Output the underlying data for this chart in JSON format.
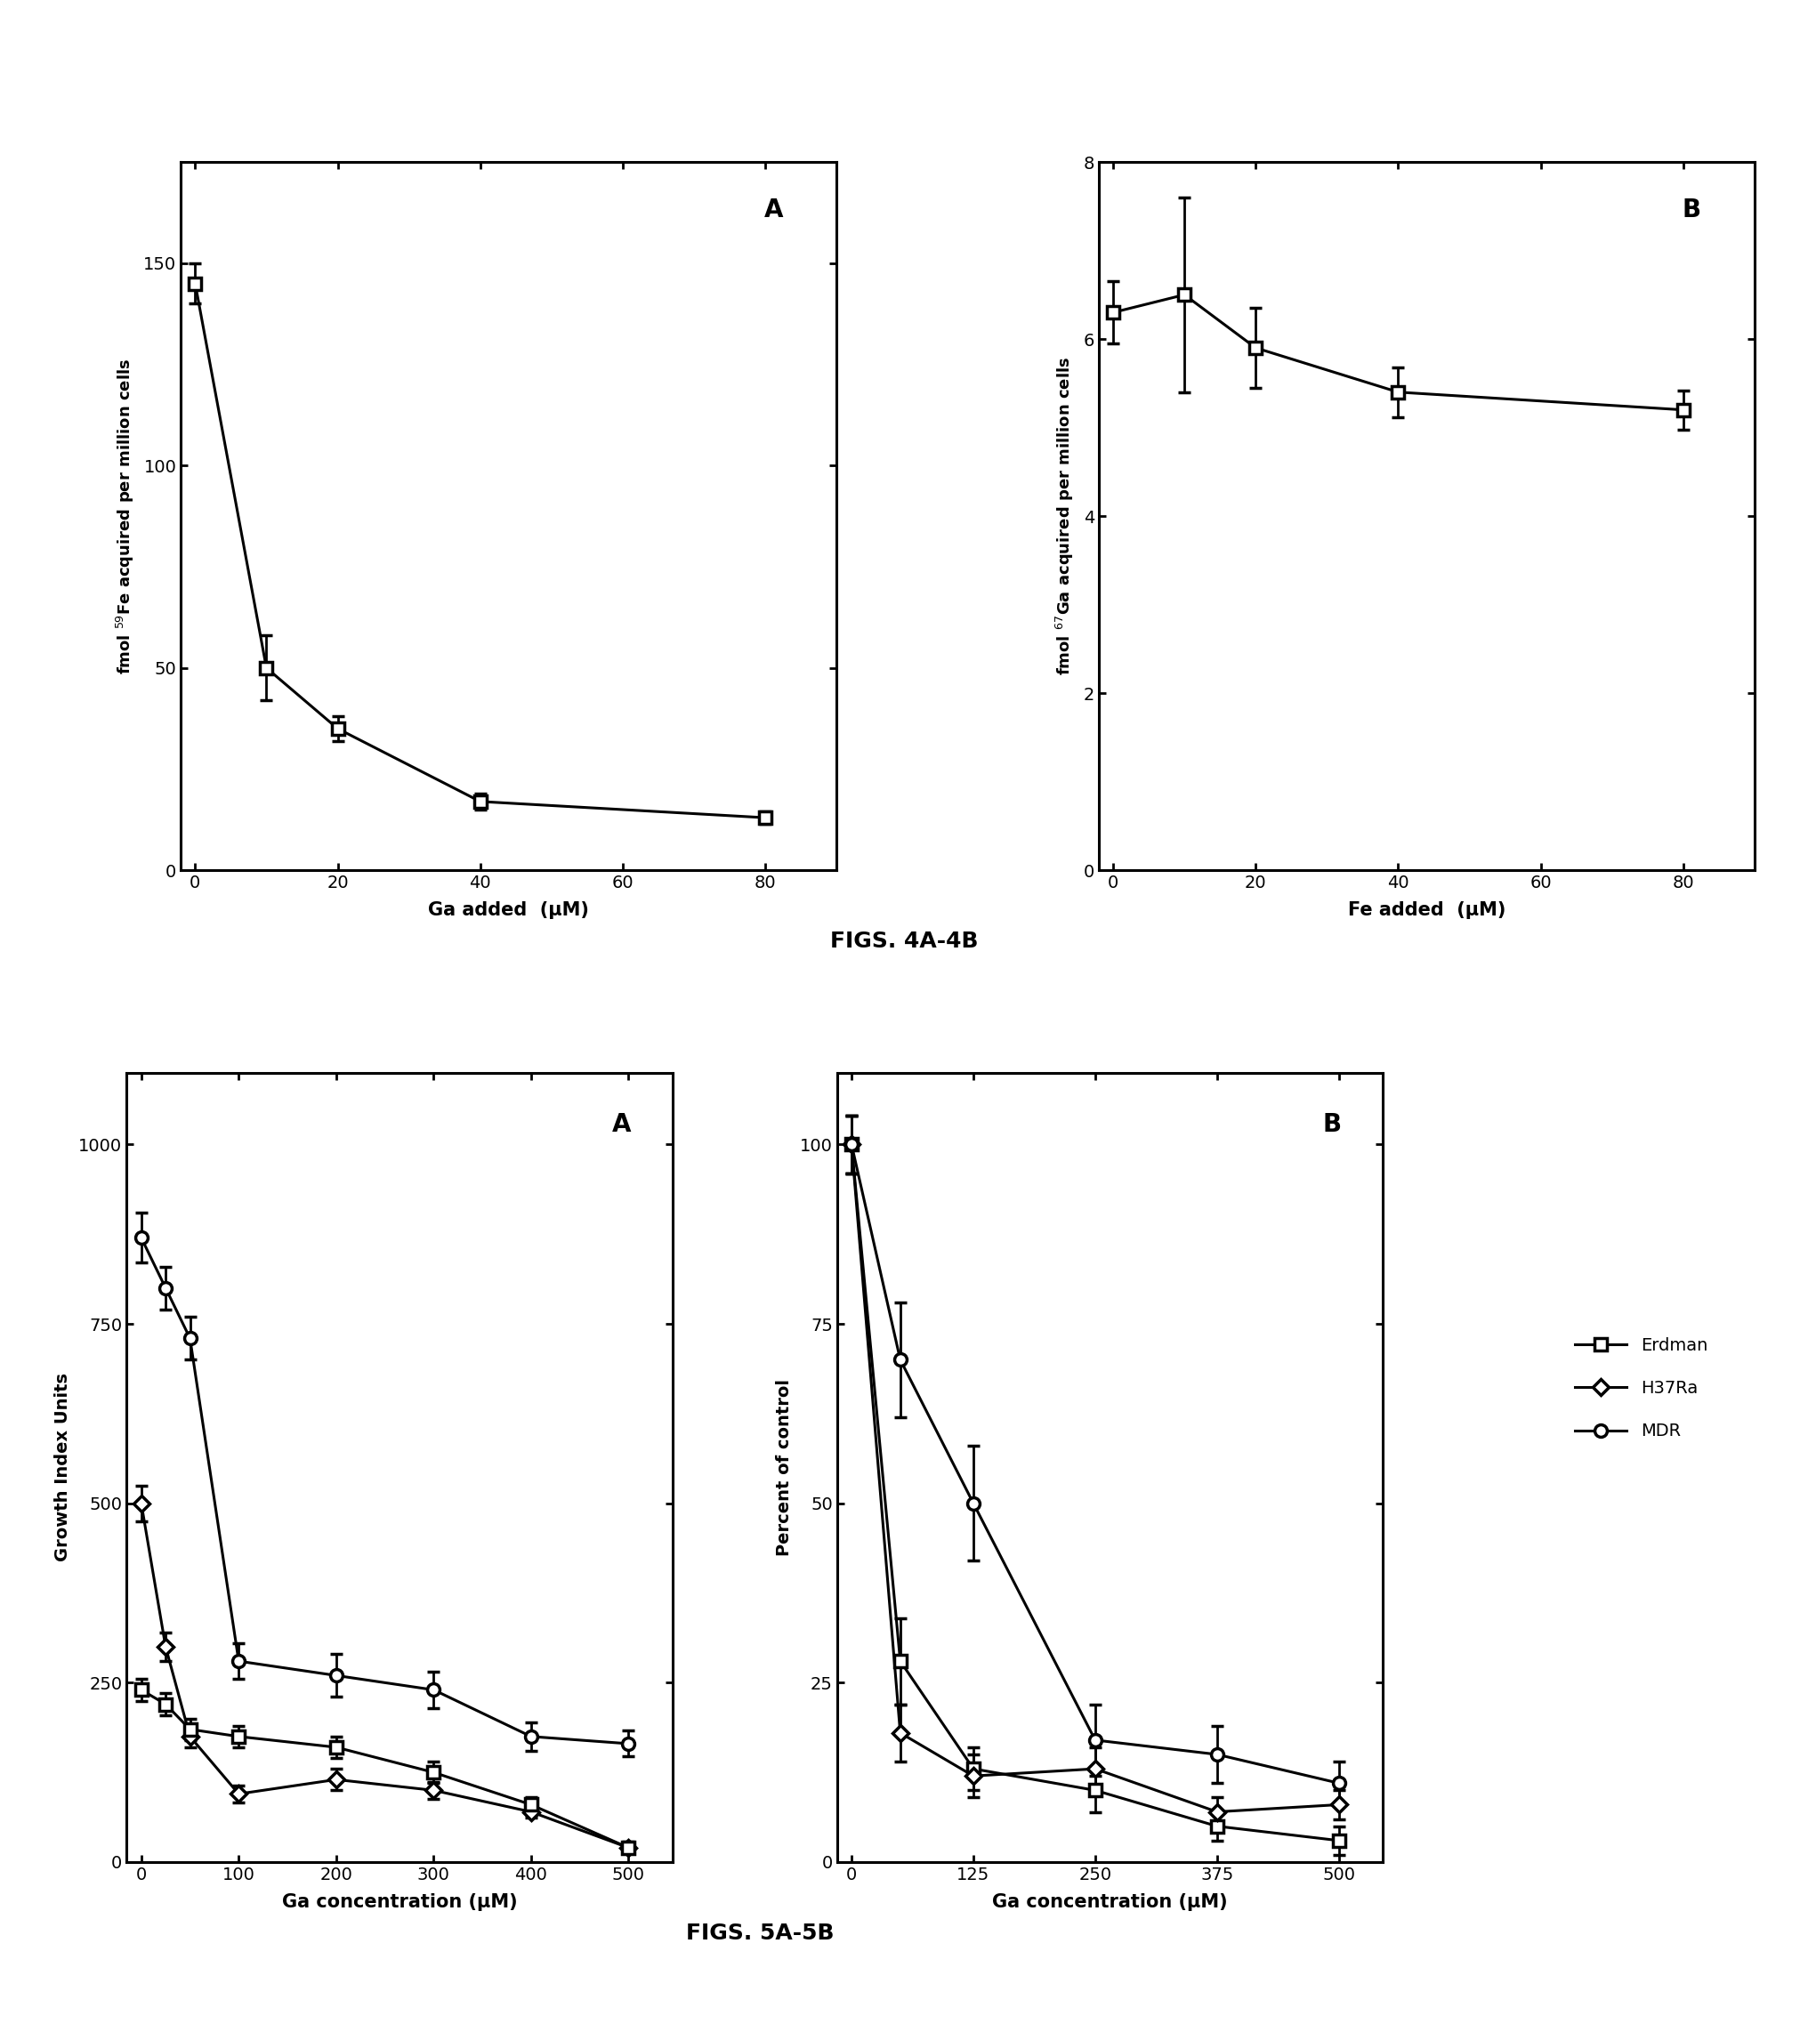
{
  "fig4A": {
    "x": [
      0,
      10,
      20,
      40,
      80
    ],
    "y": [
      145,
      50,
      35,
      17,
      13
    ],
    "yerr": [
      5,
      8,
      3,
      2,
      1.5
    ],
    "xlabel": "Ga added  (μM)",
    "ylabel": "fmol $^{59}$Fe acquired per million cells",
    "ylim": [
      0,
      175
    ],
    "xlim": [
      -2,
      90
    ],
    "yticks": [
      0,
      50,
      100,
      150
    ],
    "xticks": [
      0,
      20,
      40,
      60,
      80
    ],
    "label": "A"
  },
  "fig4B": {
    "x": [
      0,
      10,
      20,
      40,
      80
    ],
    "y": [
      6.3,
      6.5,
      5.9,
      5.4,
      5.2
    ],
    "yerr": [
      0.35,
      1.1,
      0.45,
      0.28,
      0.22
    ],
    "xlabel": "Fe added  (μM)",
    "ylabel": "fmol $^{67}$Ga acquired per million cells",
    "ylim": [
      0,
      8
    ],
    "xlim": [
      -2,
      90
    ],
    "yticks": [
      0,
      2,
      4,
      6,
      8
    ],
    "xticks": [
      0,
      20,
      40,
      60,
      80
    ],
    "label": "B"
  },
  "fig5A": {
    "erdman_x": [
      0,
      25,
      50,
      100,
      200,
      300,
      400,
      500
    ],
    "erdman_y": [
      240,
      220,
      185,
      175,
      160,
      125,
      80,
      20
    ],
    "erdman_yerr": [
      15,
      15,
      15,
      15,
      15,
      15,
      10,
      8
    ],
    "h37ra_x": [
      0,
      25,
      50,
      100,
      200,
      300,
      400,
      500
    ],
    "h37ra_y": [
      500,
      300,
      175,
      95,
      115,
      100,
      70,
      20
    ],
    "h37ra_yerr": [
      25,
      20,
      15,
      12,
      15,
      12,
      8,
      5
    ],
    "mdr_x": [
      0,
      25,
      50,
      100,
      200,
      300,
      400,
      500
    ],
    "mdr_y": [
      870,
      800,
      730,
      280,
      260,
      240,
      175,
      165
    ],
    "mdr_yerr": [
      35,
      30,
      30,
      25,
      30,
      25,
      20,
      18
    ],
    "xlabel": "Ga concentration (μM)",
    "ylabel": "Growth Index Units",
    "ylim": [
      0,
      1100
    ],
    "xlim": [
      -15,
      545
    ],
    "yticks": [
      0,
      250,
      500,
      750,
      1000
    ],
    "xticks": [
      0,
      100,
      200,
      300,
      400,
      500
    ],
    "label": "A"
  },
  "fig5B": {
    "erdman_x": [
      0,
      50,
      125,
      250,
      375,
      500
    ],
    "erdman_y": [
      100,
      28,
      13,
      10,
      5,
      3
    ],
    "erdman_yerr": [
      4,
      6,
      3,
      3,
      2,
      2
    ],
    "h37ra_x": [
      0,
      50,
      125,
      250,
      375,
      500
    ],
    "h37ra_y": [
      100,
      18,
      12,
      13,
      7,
      8
    ],
    "h37ra_yerr": [
      4,
      4,
      3,
      3,
      2,
      2
    ],
    "mdr_x": [
      0,
      50,
      125,
      250,
      375,
      500
    ],
    "mdr_y": [
      100,
      70,
      50,
      17,
      15,
      11
    ],
    "mdr_yerr": [
      4,
      8,
      8,
      5,
      4,
      3
    ],
    "xlabel": "Ga concentration (μM)",
    "ylabel": "Percent of control",
    "ylim": [
      0,
      110
    ],
    "xlim": [
      -15,
      545
    ],
    "yticks": [
      0,
      25,
      50,
      75,
      100
    ],
    "xticks": [
      0,
      125,
      250,
      375,
      500
    ],
    "label": "B"
  },
  "fig4_caption": "FIGS. 4A-4B",
  "fig5_caption": "FIGS. 5A-5B",
  "legend_labels": [
    "Erdman",
    "H37Ra",
    "MDR"
  ],
  "background_color": "#ffffff",
  "line_color": "#000000"
}
